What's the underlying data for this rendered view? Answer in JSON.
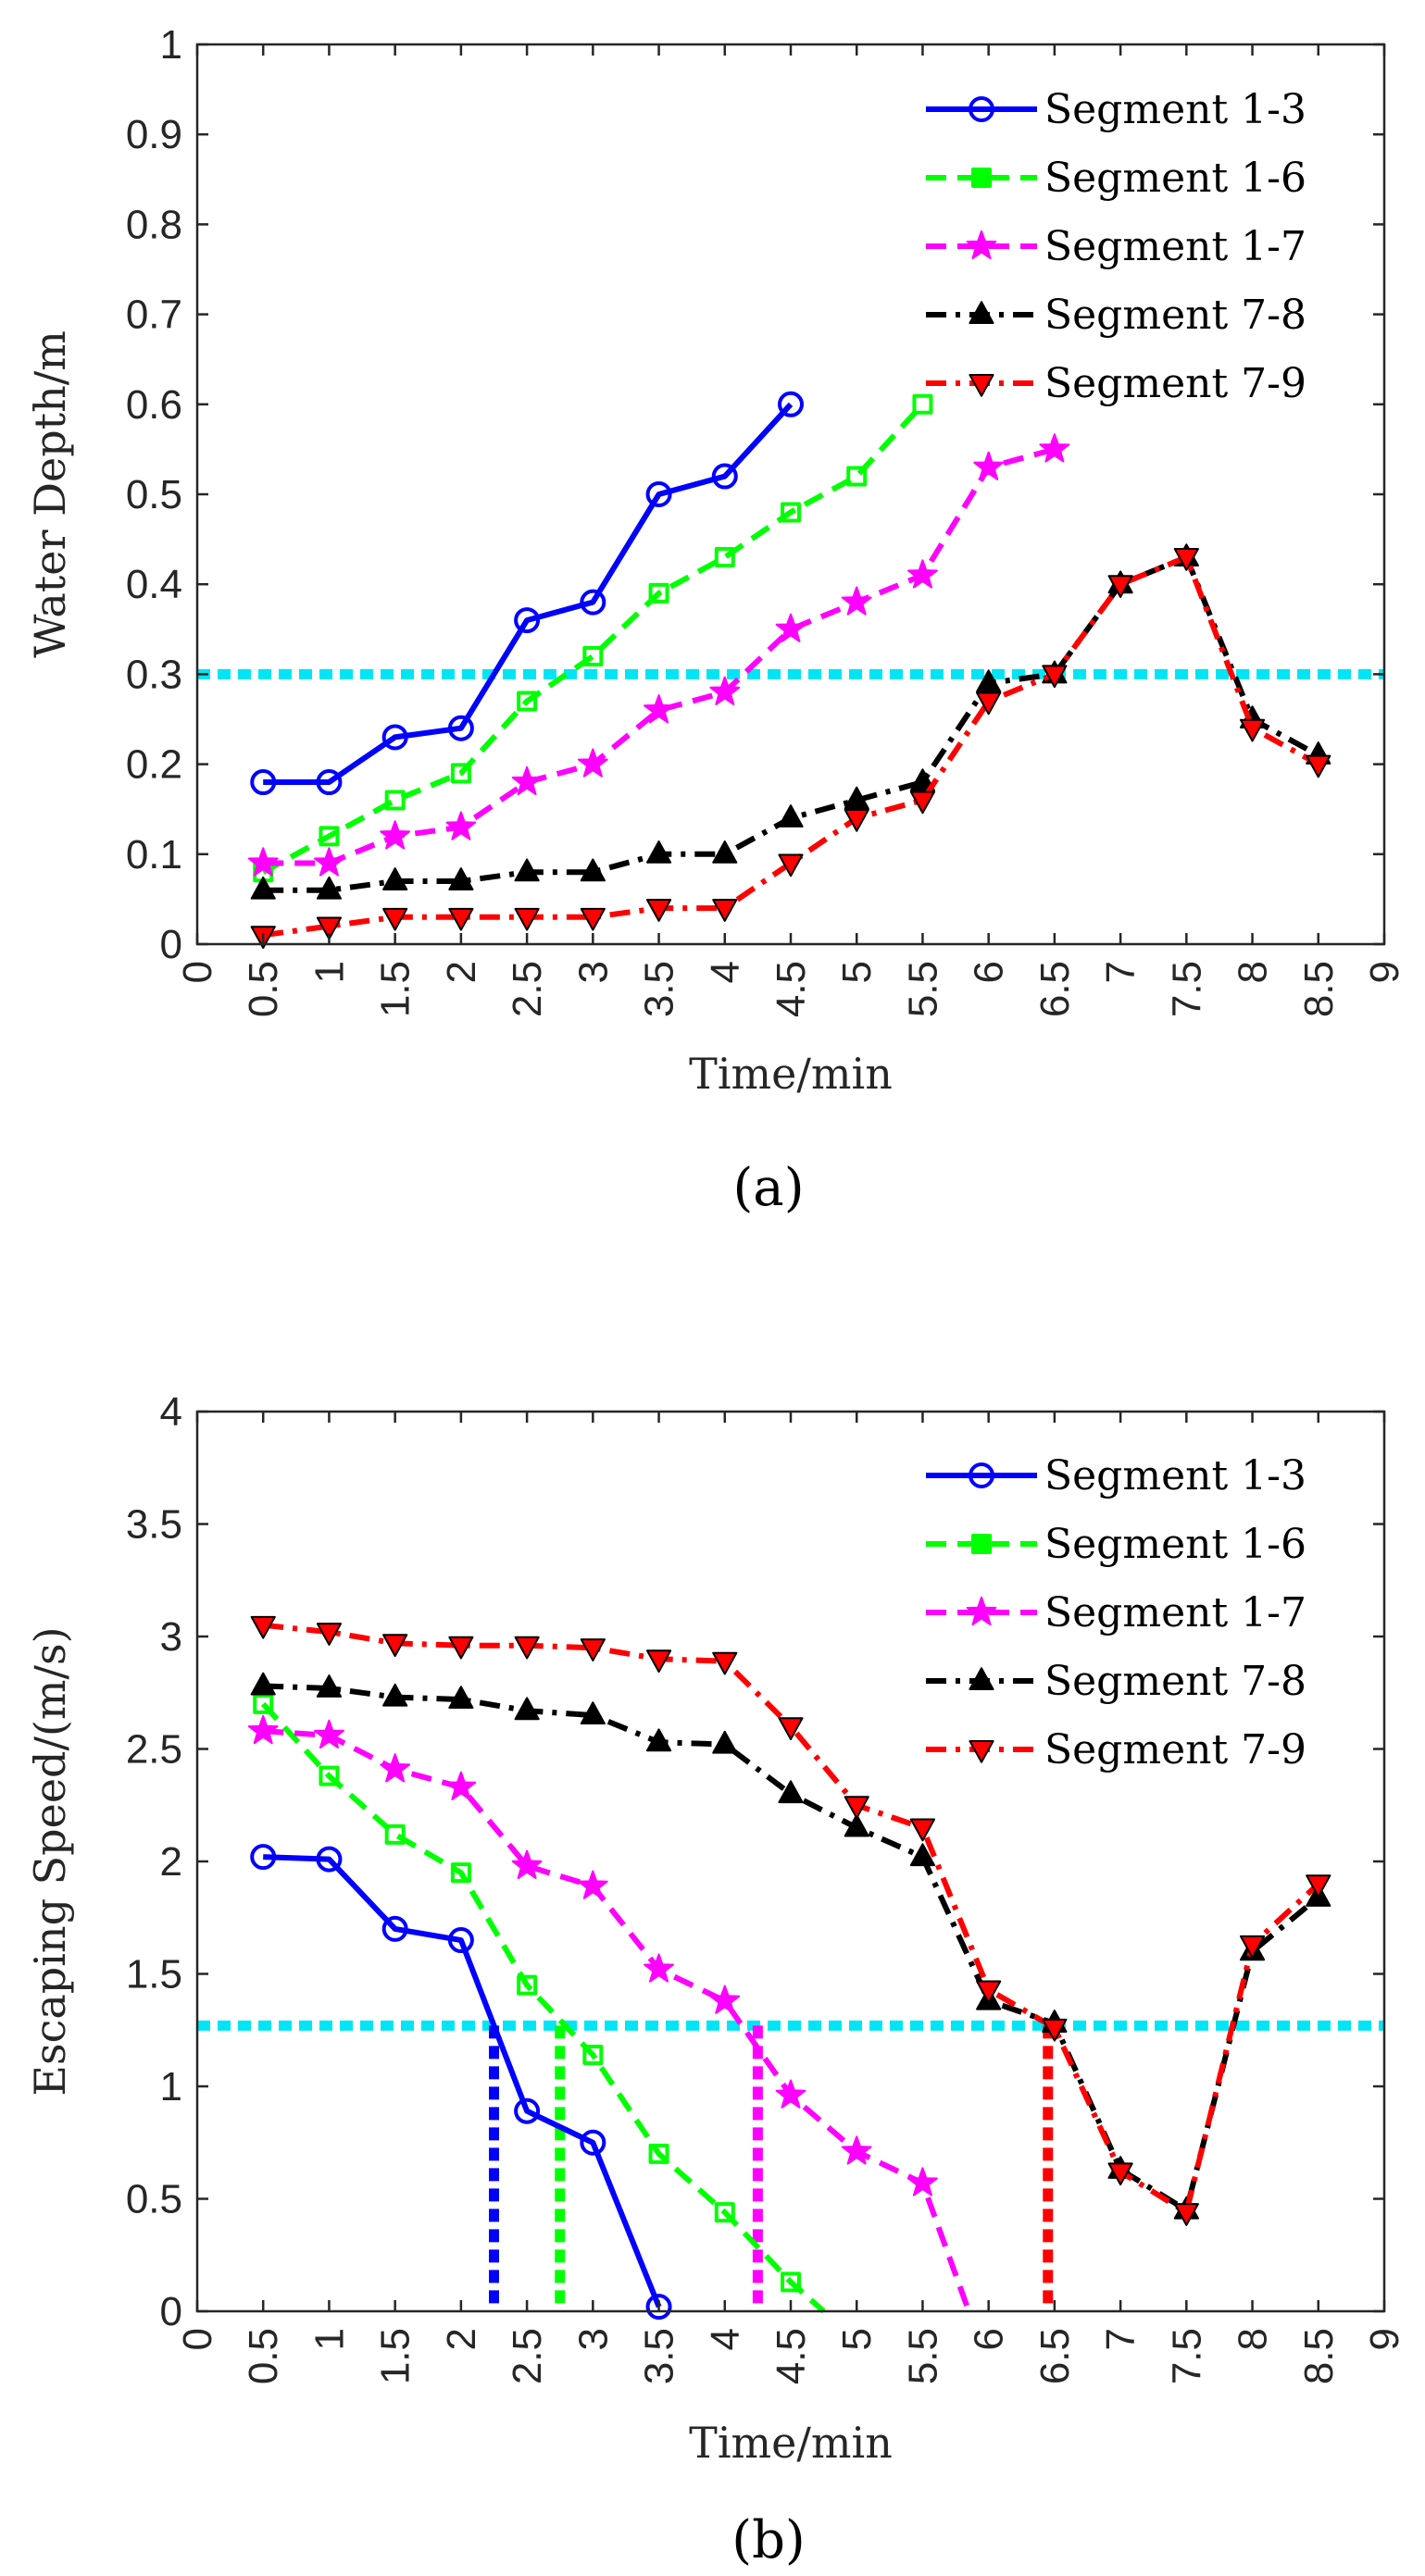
{
  "chart_data": [
    {
      "panel": "a",
      "type": "line",
      "caption": "(a)",
      "xlabel": "Time/min",
      "ylabel": "Water Depth/m",
      "xlim": [
        0,
        9
      ],
      "ylim": [
        0,
        1
      ],
      "xticks": [
        "0",
        "0.5",
        "1",
        "1.5",
        "2",
        "2.5",
        "3",
        "3.5",
        "4",
        "4.5",
        "5",
        "5.5",
        "6",
        "6.5",
        "7",
        "7.5",
        "8",
        "8.5",
        "9"
      ],
      "yticks": [
        "0",
        "0.1",
        "0.2",
        "0.3",
        "0.4",
        "0.5",
        "0.6",
        "0.7",
        "0.8",
        "0.9",
        "1"
      ],
      "threshold": {
        "y": 0.3,
        "color": "#00e5f5"
      },
      "legend_position": "top-right",
      "series": [
        {
          "name": "Segment 1-3",
          "color": "#0000ff",
          "dash": "solid",
          "marker": "circle",
          "x": [
            0.5,
            1,
            1.5,
            2,
            2.5,
            3,
            3.5,
            4,
            4.5
          ],
          "y": [
            0.18,
            0.18,
            0.23,
            0.24,
            0.36,
            0.38,
            0.5,
            0.52,
            0.6
          ]
        },
        {
          "name": "Segment 1-6",
          "color": "#00ff00",
          "dash": "dash",
          "marker": "square",
          "x": [
            0.5,
            1,
            1.5,
            2,
            2.5,
            3,
            3.5,
            4,
            4.5,
            5,
            5.5
          ],
          "y": [
            0.08,
            0.12,
            0.16,
            0.19,
            0.27,
            0.32,
            0.39,
            0.43,
            0.48,
            0.52,
            0.6
          ]
        },
        {
          "name": "Segment 1-7",
          "color": "#ff00ff",
          "dash": "dash",
          "marker": "star",
          "x": [
            0.5,
            1,
            1.5,
            2,
            2.5,
            3,
            3.5,
            4,
            4.5,
            5,
            5.5,
            6,
            6.5
          ],
          "y": [
            0.09,
            0.09,
            0.12,
            0.13,
            0.18,
            0.2,
            0.26,
            0.28,
            0.35,
            0.38,
            0.41,
            0.53,
            0.55
          ]
        },
        {
          "name": "Segment 7-8",
          "color": "#000000",
          "dash": "dashdot",
          "marker": "triangle-up",
          "x": [
            0.5,
            1,
            1.5,
            2,
            2.5,
            3,
            3.5,
            4,
            4.5,
            5,
            5.5,
            6,
            6.5,
            7,
            7.5,
            8,
            8.5
          ],
          "y": [
            0.06,
            0.06,
            0.07,
            0.07,
            0.08,
            0.08,
            0.1,
            0.1,
            0.14,
            0.16,
            0.18,
            0.29,
            0.3,
            0.4,
            0.43,
            0.25,
            0.21
          ]
        },
        {
          "name": "Segment 7-9",
          "color": "#ff0000",
          "dash": "dashdot",
          "marker": "triangle-down",
          "x": [
            0.5,
            1,
            1.5,
            2,
            2.5,
            3,
            3.5,
            4,
            4.5,
            5,
            5.5,
            6,
            6.5,
            7,
            7.5,
            8,
            8.5
          ],
          "y": [
            0.01,
            0.02,
            0.03,
            0.03,
            0.03,
            0.03,
            0.04,
            0.04,
            0.09,
            0.14,
            0.16,
            0.27,
            0.3,
            0.4,
            0.43,
            0.24,
            0.2
          ]
        }
      ]
    },
    {
      "panel": "b",
      "type": "line",
      "caption": "(b)",
      "xlabel": "Time/min",
      "ylabel": "Escaping Speed/(m/s)",
      "xlim": [
        0,
        9
      ],
      "ylim": [
        0,
        4
      ],
      "xticks": [
        "0",
        "0.5",
        "1",
        "1.5",
        "2",
        "2.5",
        "3",
        "3.5",
        "4",
        "4.5",
        "5",
        "5.5",
        "6",
        "6.5",
        "7",
        "7.5",
        "8",
        "8.5",
        "9"
      ],
      "yticks": [
        "0",
        "0.5",
        "1",
        "1.5",
        "2",
        "2.5",
        "3",
        "3.5",
        "4"
      ],
      "threshold": {
        "y": 1.27,
        "color": "#00e5f5"
      },
      "vlines": [
        {
          "x": 2.25,
          "color": "#0000ff"
        },
        {
          "x": 2.75,
          "color": "#00ff00"
        },
        {
          "x": 4.25,
          "color": "#ff00ff"
        },
        {
          "x": 6.45,
          "color": "#ff0000"
        }
      ],
      "legend_position": "top-right",
      "series": [
        {
          "name": "Segment 1-3",
          "color": "#0000ff",
          "dash": "solid",
          "marker": "circle",
          "x": [
            0.5,
            1,
            1.5,
            2,
            2.5,
            3,
            3.5
          ],
          "y": [
            2.02,
            2.01,
            1.7,
            1.65,
            0.89,
            0.75,
            0.02
          ]
        },
        {
          "name": "Segment 1-6",
          "color": "#00ff00",
          "dash": "dash",
          "marker": "square",
          "x": [
            0.5,
            1,
            1.5,
            2,
            2.5,
            3,
            3.5,
            4,
            4.5,
            4.75
          ],
          "y": [
            2.7,
            2.38,
            2.12,
            1.95,
            1.45,
            1.14,
            0.7,
            0.44,
            0.13,
            0.0
          ]
        },
        {
          "name": "Segment 1-7",
          "color": "#ff00ff",
          "dash": "dash",
          "marker": "star",
          "x": [
            0.5,
            1,
            1.5,
            2,
            2.5,
            3,
            3.5,
            4,
            4.5,
            5,
            5.5,
            5.85
          ],
          "y": [
            2.58,
            2.56,
            2.41,
            2.33,
            1.98,
            1.89,
            1.52,
            1.38,
            0.96,
            0.71,
            0.57,
            0.0
          ]
        },
        {
          "name": "Segment 7-8",
          "color": "#000000",
          "dash": "dashdot",
          "marker": "triangle-up",
          "x": [
            0.5,
            1,
            1.5,
            2,
            2.5,
            3,
            3.5,
            4,
            4.5,
            5,
            5.5,
            6,
            6.5,
            7,
            7.5,
            8,
            8.5
          ],
          "y": [
            2.78,
            2.77,
            2.73,
            2.72,
            2.67,
            2.65,
            2.53,
            2.52,
            2.3,
            2.15,
            2.02,
            1.38,
            1.28,
            0.63,
            0.45,
            1.6,
            1.84
          ]
        },
        {
          "name": "Segment 7-9",
          "color": "#ff0000",
          "dash": "dashdot",
          "marker": "triangle-down",
          "x": [
            0.5,
            1,
            1.5,
            2,
            2.5,
            3,
            3.5,
            4,
            4.5,
            5,
            5.5,
            6,
            6.5,
            7,
            7.5,
            8,
            8.5
          ],
          "y": [
            3.05,
            3.02,
            2.97,
            2.96,
            2.96,
            2.95,
            2.9,
            2.89,
            2.6,
            2.25,
            2.15,
            1.43,
            1.26,
            0.62,
            0.44,
            1.63,
            1.9
          ]
        }
      ]
    }
  ]
}
